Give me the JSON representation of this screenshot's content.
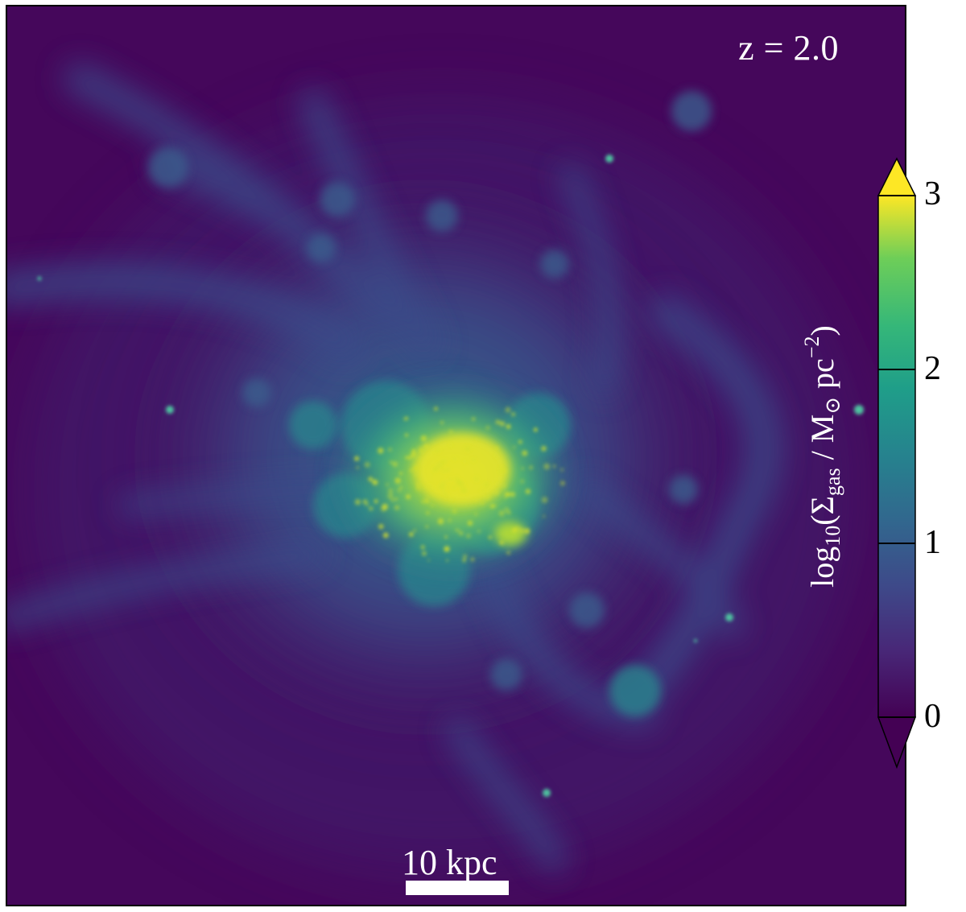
{
  "image": {
    "redshift_label": "z = 2.0",
    "scalebar": {
      "label": "10 kpc"
    },
    "colorbar": {
      "ticks": [
        "0",
        "1",
        "2",
        "3"
      ],
      "label_prefix": "log",
      "label_log_sub": "10",
      "label_paren_open": "(",
      "label_sigma": "Σ",
      "label_sigma_sub": "gas",
      "label_unit": " / M",
      "label_sun_sub": "⊙",
      "label_pc": " pc",
      "label_pc_sup": "−2",
      "label_paren_close": ")",
      "colors": [
        "#440154",
        "#3b528b",
        "#21918c",
        "#5ec962",
        "#fde725"
      ]
    },
    "colors": {
      "background": "#44075a",
      "core": "#d9e22a",
      "filament": "#3c5f8e"
    }
  }
}
